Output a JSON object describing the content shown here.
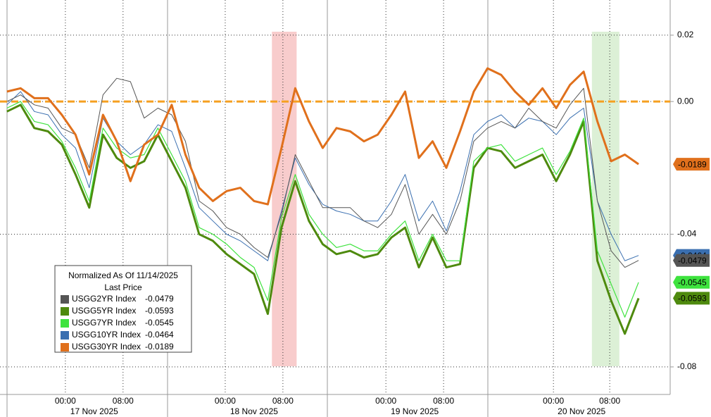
{
  "chart_data": {
    "type": "line",
    "legend_title": "Normalized As Of 11/14/2025",
    "legend_subtitle": "Last Price",
    "x": [
      0,
      1,
      2,
      3,
      4,
      5,
      6,
      7,
      8,
      9,
      10,
      11,
      12,
      13,
      14,
      15,
      16,
      17,
      18,
      19,
      20,
      21,
      22,
      23,
      24,
      25,
      26,
      27,
      28,
      29,
      30,
      31,
      32,
      33,
      34,
      35,
      36,
      37,
      38,
      39,
      40,
      41,
      42,
      43,
      44,
      45,
      46
    ],
    "xlim": [
      -0.5,
      48.3
    ],
    "xticks": [
      {
        "value": 4.26,
        "label": "00:00"
      },
      {
        "value": 8.46,
        "label": "08:00"
      },
      {
        "value": 15.9,
        "label": "00:00"
      },
      {
        "value": 20.1,
        "label": "08:00"
      },
      {
        "value": 27.6,
        "label": "00:00"
      },
      {
        "value": 31.8,
        "label": "08:00"
      },
      {
        "value": 39.8,
        "label": "00:00"
      },
      {
        "value": 43.9,
        "label": "08:00"
      }
    ],
    "date_labels": [
      "17 Nov 2025",
      "18 Nov 2025",
      "19 Nov 2025",
      "20 Nov 2025"
    ],
    "ylim": [
      -0.0883,
      0.0306
    ],
    "yticks": [
      0.02,
      {
        "value": 0,
        "label": "0.00"
      },
      -0.04,
      -0.08
    ],
    "grid": true,
    "reference_line": {
      "value": 0,
      "color": "#f5a020"
    },
    "shaded_regions": [
      {
        "xlim": [
          19.3,
          21.1
        ],
        "color": "#f8cccc"
      },
      {
        "xlim": [
          42.6,
          44.6
        ],
        "color": "#dcf0d6"
      }
    ],
    "series": [
      {
        "name": "USGG2YR Index",
        "color": "#555555",
        "text_color": "#ffffff",
        "width": 1,
        "last": -0.0479,
        "values": [
          0,
          0.002,
          -0.001,
          -0.002,
          -0.008,
          -0.01,
          -0.02,
          0.002,
          0.007,
          0.006,
          -0.005,
          -0.002,
          -0.004,
          -0.012,
          -0.03,
          -0.033,
          -0.038,
          -0.04,
          -0.044,
          -0.047,
          -0.034,
          -0.016,
          -0.024,
          -0.032,
          -0.032,
          -0.032,
          -0.036,
          -0.038,
          -0.034,
          -0.025,
          -0.04,
          -0.034,
          -0.04,
          -0.03,
          -0.012,
          -0.008,
          -0.006,
          -0.008,
          -0.002,
          -0.006,
          -0.008,
          -0.001,
          0.004,
          -0.03,
          -0.045,
          -0.05,
          -0.0479
        ]
      },
      {
        "name": "USGG5YR Index",
        "color": "#4e8a0e",
        "text_color": "#ffffff",
        "width": 3,
        "last": -0.0593,
        "values": [
          -0.003,
          -0.001,
          -0.008,
          -0.009,
          -0.013,
          -0.022,
          -0.032,
          -0.01,
          -0.017,
          -0.02,
          -0.018,
          -0.01,
          -0.018,
          -0.026,
          -0.04,
          -0.042,
          -0.046,
          -0.049,
          -0.052,
          -0.064,
          -0.038,
          -0.024,
          -0.036,
          -0.043,
          -0.046,
          -0.045,
          -0.047,
          -0.046,
          -0.041,
          -0.038,
          -0.05,
          -0.041,
          -0.05,
          -0.049,
          -0.02,
          -0.014,
          -0.015,
          -0.02,
          -0.018,
          -0.016,
          -0.024,
          -0.016,
          -0.006,
          -0.048,
          -0.06,
          -0.07,
          -0.0593
        ]
      },
      {
        "name": "USGG7YR Index",
        "color": "#3ee33e",
        "text_color": "#000000",
        "width": 1.2,
        "last": -0.0545,
        "values": [
          -0.002,
          0,
          -0.006,
          -0.007,
          -0.012,
          -0.02,
          -0.03,
          -0.008,
          -0.014,
          -0.017,
          -0.016,
          -0.008,
          -0.016,
          -0.024,
          -0.038,
          -0.04,
          -0.043,
          -0.047,
          -0.05,
          -0.06,
          -0.035,
          -0.022,
          -0.034,
          -0.04,
          -0.044,
          -0.043,
          -0.045,
          -0.045,
          -0.04,
          -0.036,
          -0.048,
          -0.04,
          -0.048,
          -0.048,
          -0.018,
          -0.014,
          -0.013,
          -0.018,
          -0.016,
          -0.014,
          -0.022,
          -0.015,
          -0.005,
          -0.045,
          -0.055,
          -0.065,
          -0.0545
        ]
      },
      {
        "name": "USGG10YR Index",
        "color": "#3a6fb0",
        "text_color": "#ffffff",
        "width": 1,
        "last": -0.0464,
        "values": [
          -0.001,
          0.003,
          -0.003,
          -0.004,
          -0.01,
          -0.014,
          -0.026,
          -0.005,
          -0.012,
          -0.016,
          -0.013,
          -0.007,
          -0.009,
          -0.02,
          -0.032,
          -0.036,
          -0.04,
          -0.042,
          -0.045,
          -0.048,
          -0.033,
          -0.017,
          -0.025,
          -0.031,
          -0.033,
          -0.034,
          -0.036,
          -0.036,
          -0.03,
          -0.022,
          -0.036,
          -0.03,
          -0.039,
          -0.027,
          -0.01,
          -0.006,
          -0.004,
          -0.008,
          -0.005,
          -0.006,
          -0.01,
          -0.005,
          -0.002,
          -0.03,
          -0.04,
          -0.048,
          -0.0464
        ]
      },
      {
        "name": "USGG30YR Index",
        "color": "#e0701c",
        "text_color": "#000000",
        "width": 3,
        "last": -0.0189,
        "values": [
          0.003,
          0.004,
          0.001,
          0.001,
          -0.004,
          -0.01,
          -0.022,
          -0.004,
          -0.012,
          -0.024,
          -0.013,
          -0.01,
          -0.001,
          -0.016,
          -0.026,
          -0.03,
          -0.027,
          -0.026,
          -0.03,
          -0.031,
          -0.014,
          0.004,
          -0.006,
          -0.014,
          -0.008,
          -0.009,
          -0.012,
          -0.01,
          -0.004,
          0.003,
          -0.017,
          -0.012,
          -0.02,
          -0.009,
          0.003,
          0.01,
          0.008,
          0.003,
          -0.001,
          0.004,
          -0.002,
          0.005,
          0.009,
          -0.006,
          -0.018,
          -0.016,
          -0.0189
        ]
      }
    ]
  }
}
